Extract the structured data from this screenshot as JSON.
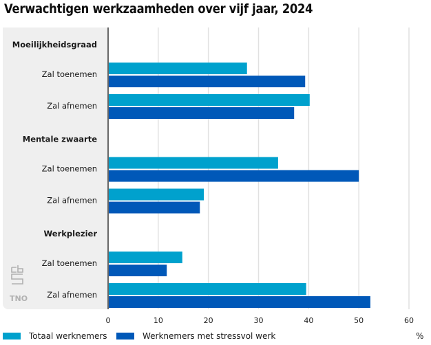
{
  "title": "Verwachtigen werkzaamheden over vijf jaar, 2024",
  "colors": {
    "totaal": "#00a1cd",
    "stress": "#0058b8",
    "panel": "#efefef",
    "grid": "#e1e1e1",
    "axis": "#666666"
  },
  "logos": {
    "cbs": "cbs-logo",
    "tno": "TNO"
  },
  "chart_data": {
    "type": "bar",
    "orientation": "horizontal",
    "title": "Verwachtigen werkzaamheden over vijf jaar, 2024",
    "xlabel": "%",
    "ylabel": "",
    "xlim": [
      0,
      60
    ],
    "xticks": [
      0,
      10,
      20,
      30,
      40,
      50,
      60
    ],
    "grid": true,
    "legend_position": "bottom",
    "groups": [
      {
        "name": "Moeilijkheidsgraad",
        "categories": [
          "Zal toenemen",
          "Zal afnemen"
        ]
      },
      {
        "name": "Mentale zwaarte",
        "categories": [
          "Zal toenemen",
          "Zal afnemen"
        ]
      },
      {
        "name": "Werkplezier",
        "categories": [
          "Zal toenemen",
          "Zal afnemen"
        ]
      }
    ],
    "series": [
      {
        "name": "Totaal werknemers",
        "values": [
          27.7,
          40.2,
          33.9,
          19.1,
          14.8,
          39.5
        ]
      },
      {
        "name": "Werknemers met stressvol werk",
        "values": [
          39.3,
          37.1,
          50.0,
          18.3,
          11.7,
          52.3
        ]
      }
    ]
  }
}
